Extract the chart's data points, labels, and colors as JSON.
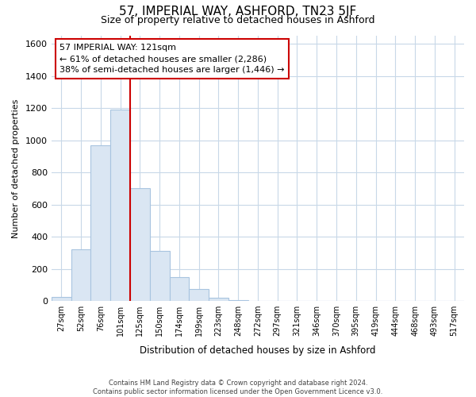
{
  "title": "57, IMPERIAL WAY, ASHFORD, TN23 5JF",
  "subtitle": "Size of property relative to detached houses in Ashford",
  "xlabel": "Distribution of detached houses by size in Ashford",
  "ylabel": "Number of detached properties",
  "bar_labels": [
    "27sqm",
    "52sqm",
    "76sqm",
    "101sqm",
    "125sqm",
    "150sqm",
    "174sqm",
    "199sqm",
    "223sqm",
    "248sqm",
    "272sqm",
    "297sqm",
    "321sqm",
    "346sqm",
    "370sqm",
    "395sqm",
    "419sqm",
    "444sqm",
    "468sqm",
    "493sqm",
    "517sqm"
  ],
  "bar_values": [
    25,
    320,
    970,
    1190,
    700,
    310,
    150,
    75,
    20,
    5,
    2,
    1,
    0,
    0,
    0,
    0,
    0,
    0,
    0,
    0,
    0
  ],
  "bar_color": "#dae6f3",
  "bar_edge_color": "#a8c4e0",
  "vline_color": "#cc0000",
  "annotation_text": "57 IMPERIAL WAY: 121sqm\n← 61% of detached houses are smaller (2,286)\n38% of semi-detached houses are larger (1,446) →",
  "annotation_box_color": "#ffffff",
  "annotation_box_edge": "#cc0000",
  "ylim": [
    0,
    1650
  ],
  "yticks": [
    0,
    200,
    400,
    600,
    800,
    1000,
    1200,
    1400,
    1600
  ],
  "footnote": "Contains HM Land Registry data © Crown copyright and database right 2024.\nContains public sector information licensed under the Open Government Licence v3.0.",
  "bg_color": "#ffffff",
  "grid_color": "#c8d8e8"
}
